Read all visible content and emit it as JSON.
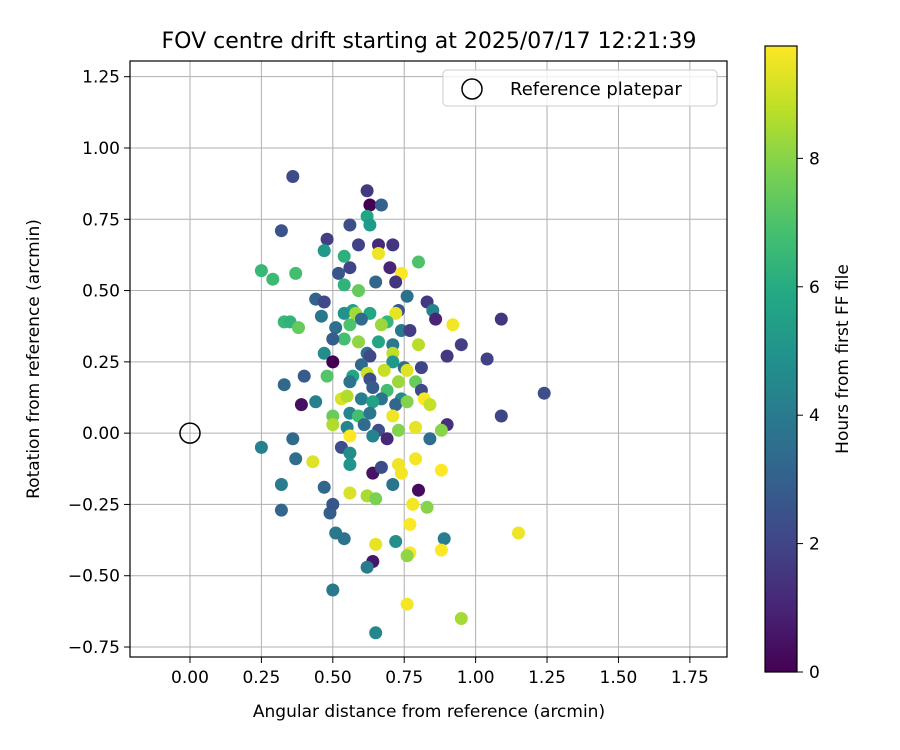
{
  "chart_data": {
    "type": "scatter",
    "title": "FOV centre drift starting at 2025/07/17 12:21:39",
    "xlabel": "Angular distance from reference (arcmin)",
    "ylabel": "Rotation from reference (arcmin)",
    "xlim": [
      -0.21,
      1.88
    ],
    "ylim": [
      -0.785,
      1.305
    ],
    "xticks": [
      0.0,
      0.25,
      0.5,
      0.75,
      1.0,
      1.25,
      1.5,
      1.75
    ],
    "xtick_labels": [
      "0.00",
      "0.25",
      "0.50",
      "0.75",
      "1.00",
      "1.25",
      "1.50",
      "1.75"
    ],
    "yticks": [
      -0.75,
      -0.5,
      -0.25,
      0.0,
      0.25,
      0.5,
      0.75,
      1.0,
      1.25
    ],
    "ytick_labels": [
      "−0.75",
      "−0.50",
      "−0.25",
      "0.00",
      "0.25",
      "0.50",
      "0.75",
      "1.00",
      "1.25"
    ],
    "grid": true,
    "legend": {
      "placement": "top-right",
      "entries": [
        "Reference platepar"
      ]
    },
    "reference_point": {
      "x": 0.0,
      "y": 0.0,
      "name": "Reference platepar"
    },
    "colorbar": {
      "label": "Hours from first FF file",
      "colormap": "viridis",
      "range": [
        0,
        9.75
      ],
      "ticks": [
        0,
        2,
        4,
        6,
        8
      ],
      "tick_labels": [
        "0",
        "2",
        "4",
        "6",
        "8"
      ]
    },
    "points": [
      {
        "x": 0.36,
        "y": 0.9,
        "c": 2.2
      },
      {
        "x": 0.62,
        "y": 0.85,
        "c": 1.6
      },
      {
        "x": 0.63,
        "y": 0.8,
        "c": 0.0
      },
      {
        "x": 0.67,
        "y": 0.8,
        "c": 3.0
      },
      {
        "x": 0.56,
        "y": 0.73,
        "c": 2.3
      },
      {
        "x": 0.62,
        "y": 0.76,
        "c": 5.8
      },
      {
        "x": 0.63,
        "y": 0.73,
        "c": 5.3
      },
      {
        "x": 0.32,
        "y": 0.71,
        "c": 2.5
      },
      {
        "x": 0.48,
        "y": 0.68,
        "c": 1.8
      },
      {
        "x": 0.59,
        "y": 0.66,
        "c": 1.9
      },
      {
        "x": 0.66,
        "y": 0.66,
        "c": 1.2
      },
      {
        "x": 0.71,
        "y": 0.66,
        "c": 1.5
      },
      {
        "x": 0.47,
        "y": 0.64,
        "c": 5.2
      },
      {
        "x": 0.54,
        "y": 0.62,
        "c": 6.2
      },
      {
        "x": 0.66,
        "y": 0.63,
        "c": 9.5
      },
      {
        "x": 0.8,
        "y": 0.6,
        "c": 7.0
      },
      {
        "x": 0.56,
        "y": 0.58,
        "c": 2.0
      },
      {
        "x": 0.7,
        "y": 0.58,
        "c": 1.0
      },
      {
        "x": 0.25,
        "y": 0.57,
        "c": 6.5
      },
      {
        "x": 0.37,
        "y": 0.56,
        "c": 6.8
      },
      {
        "x": 0.52,
        "y": 0.56,
        "c": 2.6
      },
      {
        "x": 0.74,
        "y": 0.56,
        "c": 9.7
      },
      {
        "x": 0.29,
        "y": 0.54,
        "c": 6.6
      },
      {
        "x": 0.54,
        "y": 0.52,
        "c": 6.3
      },
      {
        "x": 0.65,
        "y": 0.53,
        "c": 3.2
      },
      {
        "x": 0.72,
        "y": 0.53,
        "c": 1.5
      },
      {
        "x": 0.59,
        "y": 0.5,
        "c": 7.4
      },
      {
        "x": 0.76,
        "y": 0.48,
        "c": 3.6
      },
      {
        "x": 0.44,
        "y": 0.47,
        "c": 3.1
      },
      {
        "x": 0.47,
        "y": 0.46,
        "c": 2.1
      },
      {
        "x": 0.83,
        "y": 0.46,
        "c": 1.6
      },
      {
        "x": 0.57,
        "y": 0.43,
        "c": 5.6
      },
      {
        "x": 0.63,
        "y": 0.42,
        "c": 5.8
      },
      {
        "x": 0.73,
        "y": 0.43,
        "c": 2.6
      },
      {
        "x": 0.85,
        "y": 0.43,
        "c": 4.3
      },
      {
        "x": 0.54,
        "y": 0.42,
        "c": 4.9
      },
      {
        "x": 0.58,
        "y": 0.42,
        "c": 8.4
      },
      {
        "x": 0.72,
        "y": 0.42,
        "c": 9.4
      },
      {
        "x": 0.46,
        "y": 0.41,
        "c": 3.9
      },
      {
        "x": 0.6,
        "y": 0.4,
        "c": 3.4
      },
      {
        "x": 0.69,
        "y": 0.39,
        "c": 6.4
      },
      {
        "x": 0.86,
        "y": 0.4,
        "c": 1.0
      },
      {
        "x": 1.09,
        "y": 0.4,
        "c": 1.5
      },
      {
        "x": 0.33,
        "y": 0.39,
        "c": 6.5
      },
      {
        "x": 0.35,
        "y": 0.39,
        "c": 6.3
      },
      {
        "x": 0.56,
        "y": 0.38,
        "c": 7.0
      },
      {
        "x": 0.67,
        "y": 0.38,
        "c": 8.3
      },
      {
        "x": 0.92,
        "y": 0.38,
        "c": 9.6
      },
      {
        "x": 0.38,
        "y": 0.37,
        "c": 7.4
      },
      {
        "x": 0.51,
        "y": 0.37,
        "c": 3.6
      },
      {
        "x": 0.74,
        "y": 0.36,
        "c": 3.9
      },
      {
        "x": 0.77,
        "y": 0.36,
        "c": 1.8
      },
      {
        "x": 0.54,
        "y": 0.33,
        "c": 6.8
      },
      {
        "x": 0.5,
        "y": 0.33,
        "c": 2.9
      },
      {
        "x": 0.59,
        "y": 0.32,
        "c": 8.1
      },
      {
        "x": 0.66,
        "y": 0.32,
        "c": 5.7
      },
      {
        "x": 0.71,
        "y": 0.31,
        "c": 3.9
      },
      {
        "x": 0.8,
        "y": 0.31,
        "c": 8.7
      },
      {
        "x": 0.95,
        "y": 0.31,
        "c": 1.8
      },
      {
        "x": 0.47,
        "y": 0.28,
        "c": 4.7
      },
      {
        "x": 0.62,
        "y": 0.28,
        "c": 3.6
      },
      {
        "x": 0.63,
        "y": 0.27,
        "c": 2.1
      },
      {
        "x": 0.71,
        "y": 0.28,
        "c": 8.8
      },
      {
        "x": 0.9,
        "y": 0.27,
        "c": 1.6
      },
      {
        "x": 1.04,
        "y": 0.26,
        "c": 1.9
      },
      {
        "x": 0.5,
        "y": 0.25,
        "c": 0.0
      },
      {
        "x": 0.6,
        "y": 0.24,
        "c": 3.4
      },
      {
        "x": 0.71,
        "y": 0.25,
        "c": 5.1
      },
      {
        "x": 0.75,
        "y": 0.23,
        "c": 3.5
      },
      {
        "x": 0.81,
        "y": 0.23,
        "c": 2.0
      },
      {
        "x": 0.57,
        "y": 0.2,
        "c": 5.7
      },
      {
        "x": 0.62,
        "y": 0.21,
        "c": 9.0
      },
      {
        "x": 0.68,
        "y": 0.22,
        "c": 8.9
      },
      {
        "x": 0.76,
        "y": 0.22,
        "c": 9.3
      },
      {
        "x": 0.4,
        "y": 0.2,
        "c": 2.8
      },
      {
        "x": 0.48,
        "y": 0.2,
        "c": 7.1
      },
      {
        "x": 0.63,
        "y": 0.19,
        "c": 2.3
      },
      {
        "x": 0.73,
        "y": 0.18,
        "c": 8.3
      },
      {
        "x": 0.79,
        "y": 0.18,
        "c": 7.5
      },
      {
        "x": 0.33,
        "y": 0.17,
        "c": 3.3
      },
      {
        "x": 0.56,
        "y": 0.18,
        "c": 3.7
      },
      {
        "x": 0.64,
        "y": 0.16,
        "c": 2.8
      },
      {
        "x": 0.69,
        "y": 0.15,
        "c": 6.8
      },
      {
        "x": 0.81,
        "y": 0.15,
        "c": 2.1
      },
      {
        "x": 1.24,
        "y": 0.14,
        "c": 2.3
      },
      {
        "x": 0.53,
        "y": 0.12,
        "c": 9.2
      },
      {
        "x": 0.6,
        "y": 0.12,
        "c": 4.1
      },
      {
        "x": 0.67,
        "y": 0.12,
        "c": 3.7
      },
      {
        "x": 0.74,
        "y": 0.12,
        "c": 4.6
      },
      {
        "x": 0.82,
        "y": 0.12,
        "c": 9.7
      },
      {
        "x": 0.39,
        "y": 0.1,
        "c": 0.4
      },
      {
        "x": 0.44,
        "y": 0.11,
        "c": 4.2
      },
      {
        "x": 0.55,
        "y": 0.13,
        "c": 8.6
      },
      {
        "x": 0.64,
        "y": 0.11,
        "c": 5.6
      },
      {
        "x": 0.72,
        "y": 0.1,
        "c": 3.2
      },
      {
        "x": 0.76,
        "y": 0.11,
        "c": 7.9
      },
      {
        "x": 0.84,
        "y": 0.1,
        "c": 8.9
      },
      {
        "x": 0.5,
        "y": 0.06,
        "c": 7.5
      },
      {
        "x": 0.56,
        "y": 0.07,
        "c": 4.5
      },
      {
        "x": 0.59,
        "y": 0.06,
        "c": 6.8
      },
      {
        "x": 0.63,
        "y": 0.07,
        "c": 3.8
      },
      {
        "x": 0.71,
        "y": 0.06,
        "c": 9.5
      },
      {
        "x": 1.09,
        "y": 0.06,
        "c": 2.0
      },
      {
        "x": 0.5,
        "y": 0.03,
        "c": 8.6
      },
      {
        "x": 0.55,
        "y": 0.02,
        "c": 4.4
      },
      {
        "x": 0.61,
        "y": 0.03,
        "c": 3.4
      },
      {
        "x": 0.66,
        "y": 0.01,
        "c": 2.3
      },
      {
        "x": 0.73,
        "y": 0.01,
        "c": 7.9
      },
      {
        "x": 0.79,
        "y": 0.02,
        "c": 9.4
      },
      {
        "x": 0.9,
        "y": 0.03,
        "c": 1.3
      },
      {
        "x": 0.56,
        "y": -0.01,
        "c": 9.9
      },
      {
        "x": 0.64,
        "y": -0.01,
        "c": 4.3
      },
      {
        "x": 0.69,
        "y": -0.02,
        "c": 1.1
      },
      {
        "x": 0.84,
        "y": -0.02,
        "c": 3.5
      },
      {
        "x": 0.88,
        "y": 0.01,
        "c": 8.0
      },
      {
        "x": 0.36,
        "y": -0.02,
        "c": 3.4
      },
      {
        "x": 0.53,
        "y": -0.05,
        "c": 2.3
      },
      {
        "x": 0.25,
        "y": -0.05,
        "c": 4.2
      },
      {
        "x": 0.56,
        "y": -0.07,
        "c": 4.7
      },
      {
        "x": 0.37,
        "y": -0.09,
        "c": 3.5
      },
      {
        "x": 0.79,
        "y": -0.09,
        "c": 9.6
      },
      {
        "x": 0.43,
        "y": -0.1,
        "c": 9.3
      },
      {
        "x": 0.73,
        "y": -0.11,
        "c": 9.5
      },
      {
        "x": 0.56,
        "y": -0.11,
        "c": 5.0
      },
      {
        "x": 0.64,
        "y": -0.14,
        "c": 0.5
      },
      {
        "x": 0.74,
        "y": -0.14,
        "c": 9.6
      },
      {
        "x": 0.88,
        "y": -0.13,
        "c": 9.8
      },
      {
        "x": 0.67,
        "y": -0.12,
        "c": 2.2
      },
      {
        "x": 0.32,
        "y": -0.18,
        "c": 4.0
      },
      {
        "x": 0.47,
        "y": -0.19,
        "c": 3.2
      },
      {
        "x": 0.71,
        "y": -0.18,
        "c": 3.7
      },
      {
        "x": 0.8,
        "y": -0.2,
        "c": 0.3
      },
      {
        "x": 0.56,
        "y": -0.21,
        "c": 9.2
      },
      {
        "x": 0.62,
        "y": -0.22,
        "c": 8.5
      },
      {
        "x": 0.65,
        "y": -0.23,
        "c": 7.8
      },
      {
        "x": 0.78,
        "y": -0.25,
        "c": 9.6
      },
      {
        "x": 0.83,
        "y": -0.26,
        "c": 8.0
      },
      {
        "x": 0.32,
        "y": -0.27,
        "c": 3.2
      },
      {
        "x": 0.49,
        "y": -0.28,
        "c": 2.9
      },
      {
        "x": 0.5,
        "y": -0.25,
        "c": 2.6
      },
      {
        "x": 0.77,
        "y": -0.32,
        "c": 9.7
      },
      {
        "x": 0.51,
        "y": -0.35,
        "c": 3.9
      },
      {
        "x": 1.15,
        "y": -0.35,
        "c": 9.5
      },
      {
        "x": 0.54,
        "y": -0.37,
        "c": 3.7
      },
      {
        "x": 0.72,
        "y": -0.38,
        "c": 4.8
      },
      {
        "x": 0.89,
        "y": -0.37,
        "c": 4.1
      },
      {
        "x": 0.65,
        "y": -0.39,
        "c": 9.4
      },
      {
        "x": 0.77,
        "y": -0.42,
        "c": 9.7
      },
      {
        "x": 0.76,
        "y": -0.43,
        "c": 8.1
      },
      {
        "x": 0.88,
        "y": -0.41,
        "c": 9.7
      },
      {
        "x": 0.64,
        "y": -0.45,
        "c": 0.6
      },
      {
        "x": 0.62,
        "y": -0.47,
        "c": 4.0
      },
      {
        "x": 0.5,
        "y": -0.55,
        "c": 3.9
      },
      {
        "x": 0.76,
        "y": -0.6,
        "c": 9.6
      },
      {
        "x": 0.95,
        "y": -0.65,
        "c": 8.4
      },
      {
        "x": 0.65,
        "y": -0.7,
        "c": 4.5
      }
    ]
  }
}
